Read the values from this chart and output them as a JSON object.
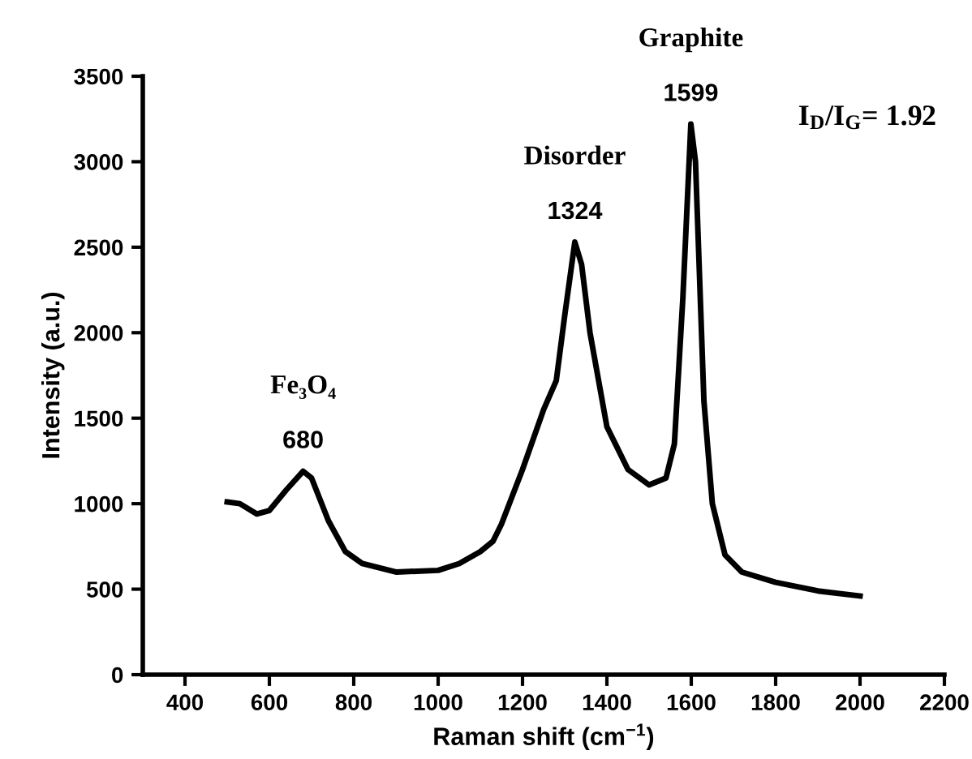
{
  "chart_data": {
    "type": "line",
    "xlabel": "Raman shift (cm$^{−1}$)",
    "ylabel": "Intensity (a.u.)",
    "x": [
      500,
      530,
      570,
      600,
      640,
      680,
      700,
      740,
      780,
      820,
      900,
      1000,
      1050,
      1100,
      1130,
      1150,
      1200,
      1250,
      1280,
      1300,
      1324,
      1340,
      1360,
      1400,
      1450,
      1500,
      1540,
      1560,
      1580,
      1599,
      1610,
      1630,
      1650,
      1680,
      1720,
      1800,
      1900,
      2000
    ],
    "series": [
      {
        "color": "#000000",
        "values": [
          1010,
          1000,
          940,
          960,
          1080,
          1190,
          1150,
          900,
          720,
          650,
          600,
          610,
          650,
          720,
          780,
          880,
          1200,
          1550,
          1720,
          2100,
          2530,
          2400,
          2000,
          1450,
          1200,
          1110,
          1150,
          1350,
          2200,
          3220,
          3000,
          1600,
          1000,
          700,
          600,
          540,
          490,
          460
        ]
      }
    ],
    "xlim": [
      300,
      2200
    ],
    "xticks": [
      400,
      600,
      800,
      1000,
      1200,
      1400,
      1600,
      1800,
      2000,
      2200
    ],
    "ylim": [
      0,
      3500
    ],
    "yticks": [
      0,
      500,
      1000,
      1500,
      2000,
      2500,
      3000,
      3500
    ],
    "annotations": [
      {
        "text": "680",
        "x": 680,
        "y": 1190
      },
      "Fe₃O₄",
      {
        "text": "1324",
        "x": 1324,
        "y": 2530
      },
      "Disorder",
      {
        "text": "1599",
        "x": 1599,
        "y": 3220
      },
      "Graphite",
      "I$_{D}$/I$_{G}$= 1.92"
    ],
    "line_style": "solid",
    "marker": "none"
  }
}
